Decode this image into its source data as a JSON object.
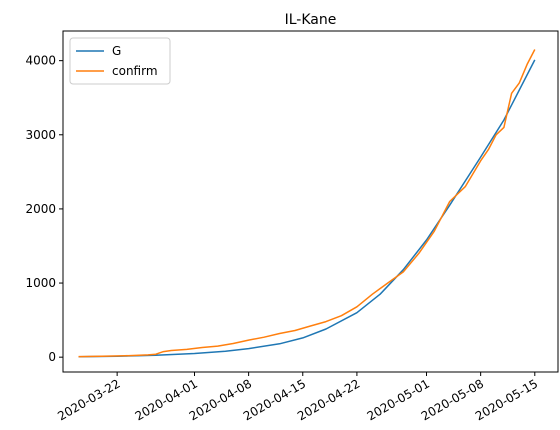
{
  "chart_data": {
    "type": "line",
    "title": "IL-Kane",
    "xlabel": "",
    "ylabel": "",
    "x_start": "2020-03-17",
    "x_end": "2020-05-15",
    "xlim": [
      "2020-03-15",
      "2020-05-18"
    ],
    "ylim": [
      -200,
      4400
    ],
    "x_ticks": [
      "2020-03-22",
      "2020-04-01",
      "2020-04-08",
      "2020-04-15",
      "2020-04-22",
      "2020-05-01",
      "2020-05-08",
      "2020-05-15"
    ],
    "y_ticks": [
      0,
      1000,
      2000,
      3000,
      4000
    ],
    "legend_position": "upper-left",
    "grid": false,
    "series": [
      {
        "name": "G",
        "color": "#1f77b4",
        "points": [
          [
            "2020-03-17",
            5
          ],
          [
            "2020-03-22",
            12
          ],
          [
            "2020-03-27",
            25
          ],
          [
            "2020-04-01",
            50
          ],
          [
            "2020-04-05",
            80
          ],
          [
            "2020-04-08",
            115
          ],
          [
            "2020-04-12",
            180
          ],
          [
            "2020-04-15",
            260
          ],
          [
            "2020-04-18",
            380
          ],
          [
            "2020-04-22",
            600
          ],
          [
            "2020-04-25",
            850
          ],
          [
            "2020-04-28",
            1180
          ],
          [
            "2020-05-01",
            1580
          ],
          [
            "2020-05-04",
            2050
          ],
          [
            "2020-05-08",
            2700
          ],
          [
            "2020-05-11",
            3200
          ],
          [
            "2020-05-15",
            4010
          ]
        ]
      },
      {
        "name": "confirm",
        "color": "#ff7f0e",
        "points": [
          [
            "2020-03-17",
            8
          ],
          [
            "2020-03-20",
            12
          ],
          [
            "2020-03-23",
            18
          ],
          [
            "2020-03-26",
            30
          ],
          [
            "2020-03-27",
            40
          ],
          [
            "2020-03-28",
            75
          ],
          [
            "2020-03-29",
            90
          ],
          [
            "2020-03-31",
            105
          ],
          [
            "2020-04-02",
            130
          ],
          [
            "2020-04-04",
            150
          ],
          [
            "2020-04-06",
            185
          ],
          [
            "2020-04-08",
            230
          ],
          [
            "2020-04-10",
            270
          ],
          [
            "2020-04-12",
            320
          ],
          [
            "2020-04-14",
            360
          ],
          [
            "2020-04-16",
            420
          ],
          [
            "2020-04-18",
            480
          ],
          [
            "2020-04-20",
            560
          ],
          [
            "2020-04-22",
            680
          ],
          [
            "2020-04-24",
            850
          ],
          [
            "2020-04-26",
            1000
          ],
          [
            "2020-04-28",
            1150
          ],
          [
            "2020-04-30",
            1400
          ],
          [
            "2020-05-02",
            1700
          ],
          [
            "2020-05-04",
            2100
          ],
          [
            "2020-05-06",
            2300
          ],
          [
            "2020-05-08",
            2650
          ],
          [
            "2020-05-09",
            2800
          ],
          [
            "2020-05-10",
            3000
          ],
          [
            "2020-05-11",
            3100
          ],
          [
            "2020-05-12",
            3560
          ],
          [
            "2020-05-13",
            3700
          ],
          [
            "2020-05-14",
            3950
          ],
          [
            "2020-05-15",
            4150
          ]
        ]
      }
    ]
  }
}
